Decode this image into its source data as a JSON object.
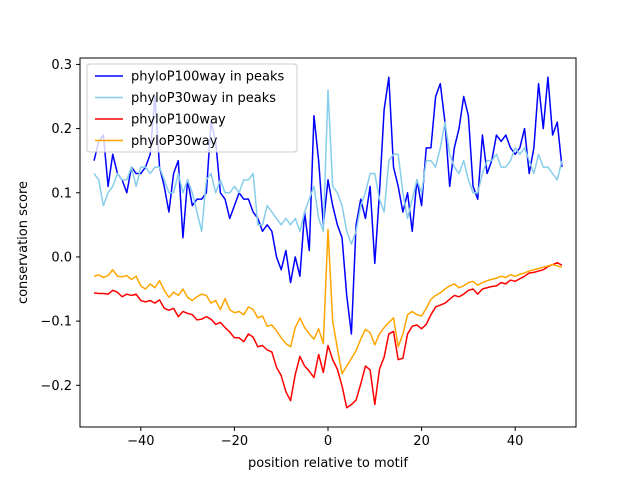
{
  "chart_data": {
    "type": "line",
    "title": "",
    "xlabel": "position relative to motif",
    "ylabel": "conservation score",
    "xlim": [
      -53,
      53
    ],
    "ylim": [
      -0.265,
      0.31
    ],
    "xticks": [
      -40,
      -20,
      0,
      20,
      40
    ],
    "yticks": [
      -0.2,
      -0.1,
      0.0,
      0.1,
      0.2,
      0.3
    ],
    "xtick_labels": [
      "−40",
      "−20",
      "0",
      "20",
      "40"
    ],
    "ytick_labels": [
      "−0.2",
      "−0.1",
      "0.0",
      "0.1",
      "0.2",
      "0.3"
    ],
    "grid": false,
    "legend_position": "top-left",
    "x": [
      -50,
      -49,
      -48,
      -47,
      -46,
      -45,
      -44,
      -43,
      -42,
      -41,
      -40,
      -39,
      -38,
      -37,
      -36,
      -35,
      -34,
      -33,
      -32,
      -31,
      -30,
      -29,
      -28,
      -27,
      -26,
      -25,
      -24,
      -23,
      -22,
      -21,
      -20,
      -19,
      -18,
      -17,
      -16,
      -15,
      -14,
      -13,
      -12,
      -11,
      -10,
      -9,
      -8,
      -7,
      -6,
      -5,
      -4,
      -3,
      -2,
      -1,
      0,
      1,
      2,
      3,
      4,
      5,
      6,
      7,
      8,
      9,
      10,
      11,
      12,
      13,
      14,
      15,
      16,
      17,
      18,
      19,
      20,
      21,
      22,
      23,
      24,
      25,
      26,
      27,
      28,
      29,
      30,
      31,
      32,
      33,
      34,
      35,
      36,
      37,
      38,
      39,
      40,
      41,
      42,
      43,
      44,
      45,
      46,
      47,
      48,
      49,
      50
    ],
    "series": [
      {
        "name": "phyloP100way in peaks",
        "color": "#0000ff",
        "values": [
          0.15,
          0.18,
          0.19,
          0.11,
          0.16,
          0.13,
          0.12,
          0.1,
          0.14,
          0.13,
          0.13,
          0.14,
          0.16,
          0.25,
          0.14,
          0.11,
          0.07,
          0.13,
          0.15,
          0.03,
          0.12,
          0.08,
          0.09,
          0.09,
          0.1,
          0.21,
          0.18,
          0.1,
          0.09,
          0.06,
          0.08,
          0.1,
          0.09,
          0.09,
          0.07,
          0.06,
          0.04,
          0.05,
          0.04,
          0.0,
          -0.02,
          0.01,
          -0.04,
          0.0,
          -0.03,
          0.07,
          0.01,
          0.22,
          0.15,
          0.05,
          0.12,
          0.08,
          0.05,
          0.03,
          -0.06,
          -0.12,
          0.05,
          0.09,
          0.06,
          0.11,
          -0.01,
          0.1,
          0.23,
          0.28,
          0.14,
          0.11,
          0.07,
          0.1,
          0.04,
          0.12,
          0.08,
          0.17,
          0.17,
          0.25,
          0.27,
          0.21,
          0.11,
          0.17,
          0.2,
          0.25,
          0.22,
          0.11,
          0.09,
          0.19,
          0.13,
          0.15,
          0.19,
          0.18,
          0.19,
          0.17,
          0.16,
          0.17,
          0.2,
          0.13,
          0.17,
          0.27,
          0.2,
          0.28,
          0.19,
          0.21,
          0.14
        ]
      },
      {
        "name": "phyloP30way in peaks",
        "color": "#87ceeb",
        "values": [
          0.13,
          0.12,
          0.08,
          0.1,
          0.11,
          0.13,
          0.12,
          0.12,
          0.14,
          0.11,
          0.14,
          0.14,
          0.13,
          0.14,
          0.14,
          0.12,
          0.1,
          0.1,
          0.13,
          0.1,
          0.12,
          0.1,
          0.07,
          0.04,
          0.12,
          0.13,
          0.1,
          0.12,
          0.1,
          0.1,
          0.11,
          0.1,
          0.12,
          0.12,
          0.13,
          0.05,
          0.05,
          0.08,
          0.07,
          0.06,
          0.05,
          0.06,
          0.05,
          0.06,
          0.04,
          0.07,
          0.09,
          0.11,
          0.06,
          0.04,
          0.26,
          0.11,
          0.1,
          0.08,
          0.04,
          0.02,
          0.04,
          0.08,
          0.1,
          0.13,
          0.13,
          0.09,
          0.07,
          0.15,
          0.16,
          0.16,
          0.1,
          0.06,
          0.09,
          0.12,
          0.1,
          0.15,
          0.15,
          0.14,
          0.17,
          0.21,
          0.16,
          0.14,
          0.13,
          0.15,
          0.12,
          0.1,
          0.1,
          0.13,
          0.15,
          0.15,
          0.16,
          0.14,
          0.14,
          0.15,
          0.17,
          0.16,
          0.17,
          0.15,
          0.13,
          0.16,
          0.14,
          0.14,
          0.13,
          0.12,
          0.15
        ]
      },
      {
        "name": "phyloP100way",
        "color": "#ff0000",
        "values": [
          -0.056,
          -0.057,
          -0.057,
          -0.058,
          -0.052,
          -0.055,
          -0.062,
          -0.058,
          -0.06,
          -0.058,
          -0.068,
          -0.07,
          -0.068,
          -0.072,
          -0.067,
          -0.08,
          -0.083,
          -0.08,
          -0.093,
          -0.085,
          -0.088,
          -0.09,
          -0.098,
          -0.097,
          -0.093,
          -0.097,
          -0.105,
          -0.102,
          -0.11,
          -0.117,
          -0.126,
          -0.126,
          -0.132,
          -0.12,
          -0.125,
          -0.14,
          -0.138,
          -0.145,
          -0.148,
          -0.172,
          -0.185,
          -0.21,
          -0.224,
          -0.183,
          -0.155,
          -0.17,
          -0.178,
          -0.188,
          -0.152,
          -0.18,
          -0.138,
          -0.16,
          -0.175,
          -0.201,
          -0.235,
          -0.23,
          -0.223,
          -0.198,
          -0.17,
          -0.176,
          -0.23,
          -0.175,
          -0.156,
          -0.12,
          -0.116,
          -0.16,
          -0.158,
          -0.12,
          -0.108,
          -0.106,
          -0.112,
          -0.105,
          -0.09,
          -0.078,
          -0.075,
          -0.072,
          -0.066,
          -0.06,
          -0.062,
          -0.058,
          -0.052,
          -0.05,
          -0.058,
          -0.05,
          -0.048,
          -0.046,
          -0.045,
          -0.04,
          -0.042,
          -0.036,
          -0.038,
          -0.034,
          -0.03,
          -0.025,
          -0.024,
          -0.022,
          -0.02,
          -0.015,
          -0.012,
          -0.009,
          -0.013
        ]
      },
      {
        "name": "phyloP30way",
        "color": "#ffa500",
        "values": [
          -0.03,
          -0.028,
          -0.032,
          -0.029,
          -0.02,
          -0.03,
          -0.031,
          -0.029,
          -0.035,
          -0.03,
          -0.045,
          -0.05,
          -0.042,
          -0.048,
          -0.037,
          -0.052,
          -0.063,
          -0.055,
          -0.06,
          -0.05,
          -0.063,
          -0.068,
          -0.062,
          -0.058,
          -0.06,
          -0.072,
          -0.068,
          -0.082,
          -0.065,
          -0.082,
          -0.087,
          -0.085,
          -0.09,
          -0.078,
          -0.082,
          -0.095,
          -0.092,
          -0.108,
          -0.106,
          -0.115,
          -0.126,
          -0.135,
          -0.14,
          -0.11,
          -0.095,
          -0.11,
          -0.12,
          -0.128,
          -0.112,
          -0.135,
          0.043,
          -0.1,
          -0.142,
          -0.182,
          -0.17,
          -0.158,
          -0.146,
          -0.128,
          -0.113,
          -0.118,
          -0.137,
          -0.12,
          -0.11,
          -0.102,
          -0.095,
          -0.14,
          -0.12,
          -0.09,
          -0.085,
          -0.09,
          -0.092,
          -0.08,
          -0.066,
          -0.06,
          -0.056,
          -0.05,
          -0.045,
          -0.042,
          -0.048,
          -0.045,
          -0.04,
          -0.038,
          -0.044,
          -0.04,
          -0.037,
          -0.035,
          -0.033,
          -0.03,
          -0.032,
          -0.028,
          -0.03,
          -0.027,
          -0.025,
          -0.022,
          -0.02,
          -0.018,
          -0.016,
          -0.014,
          -0.012,
          -0.014,
          -0.016
        ]
      }
    ]
  }
}
